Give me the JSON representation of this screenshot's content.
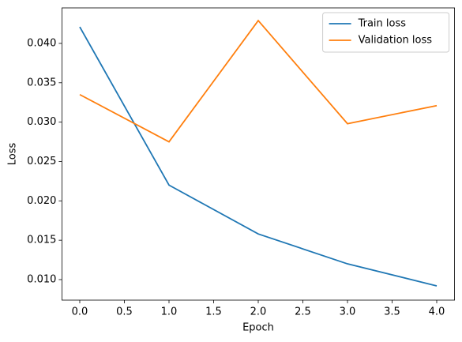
{
  "chart_data": {
    "type": "line",
    "x_label": "Epoch",
    "y_label": "Loss",
    "x": [
      0,
      1,
      2,
      3,
      4
    ],
    "series": [
      {
        "name": "Train loss",
        "color": "#1f77b4",
        "values": [
          0.0421,
          0.022,
          0.0158,
          0.012,
          0.0092
        ]
      },
      {
        "name": "Validation loss",
        "color": "#ff7f0e",
        "values": [
          0.0335,
          0.0275,
          0.0429,
          0.0298,
          0.0321
        ]
      }
    ],
    "xlim": [
      -0.2,
      4.2
    ],
    "xticks": [
      {
        "value": 0,
        "label": "0.0"
      },
      0.5,
      {
        "value": 1,
        "label": "1.0"
      },
      1.5,
      {
        "value": 2,
        "label": "2.0"
      },
      2.5,
      {
        "value": 3,
        "label": "3.0"
      },
      3.5,
      {
        "value": 4,
        "label": "4.0"
      }
    ],
    "ylim": [
      0.00739,
      0.04451
    ],
    "yticks": [
      {
        "value": 0.01,
        "label": "0.010"
      },
      {
        "value": 0.015,
        "label": "0.015"
      },
      {
        "value": 0.02,
        "label": "0.020"
      },
      {
        "value": 0.025,
        "label": "0.025"
      },
      {
        "value": 0.03,
        "label": "0.030"
      },
      {
        "value": 0.035,
        "label": "0.035"
      },
      {
        "value": 0.04,
        "label": "0.040"
      }
    ],
    "grid": false,
    "legend": "upper right"
  }
}
